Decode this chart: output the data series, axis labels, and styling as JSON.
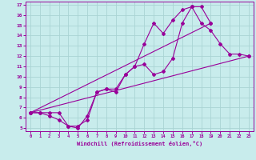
{
  "xlabel": "Windchill (Refroidissement éolien,°C)",
  "bg_color": "#c8ecec",
  "grid_color": "#aad4d4",
  "line_color": "#990099",
  "xlim": [
    -0.5,
    23.5
  ],
  "ylim": [
    4.7,
    17.3
  ],
  "xticks": [
    0,
    1,
    2,
    3,
    4,
    5,
    6,
    7,
    8,
    9,
    10,
    11,
    12,
    13,
    14,
    15,
    16,
    17,
    18,
    19,
    20,
    21,
    22,
    23
  ],
  "yticks": [
    5,
    6,
    7,
    8,
    9,
    10,
    11,
    12,
    13,
    14,
    15,
    16,
    17
  ],
  "line1_x": [
    0,
    1,
    2,
    3,
    4,
    5,
    6,
    7,
    8,
    9,
    10,
    11,
    12,
    13,
    14,
    15,
    16,
    17,
    18,
    19
  ],
  "line1_y": [
    6.5,
    6.5,
    6.5,
    6.5,
    5.2,
    5.2,
    5.8,
    8.5,
    8.8,
    8.8,
    10.2,
    11.0,
    13.2,
    15.2,
    14.2,
    15.5,
    16.5,
    16.8,
    16.8,
    15.2
  ],
  "line2_x": [
    0,
    1,
    2,
    3,
    4,
    5,
    6,
    7,
    8,
    9,
    10,
    11,
    12,
    13,
    14,
    15,
    16,
    17,
    18,
    19,
    20,
    21,
    22,
    23
  ],
  "line2_y": [
    6.5,
    6.5,
    6.2,
    5.8,
    5.2,
    5.0,
    6.2,
    8.5,
    8.8,
    8.5,
    10.2,
    11.0,
    11.2,
    10.2,
    10.5,
    11.8,
    15.2,
    16.8,
    15.2,
    14.5,
    13.2,
    12.2,
    12.2,
    12.0
  ],
  "line3_x": [
    0,
    23
  ],
  "line3_y": [
    6.5,
    12.0
  ],
  "line4_x": [
    0,
    19
  ],
  "line4_y": [
    6.5,
    15.2
  ]
}
